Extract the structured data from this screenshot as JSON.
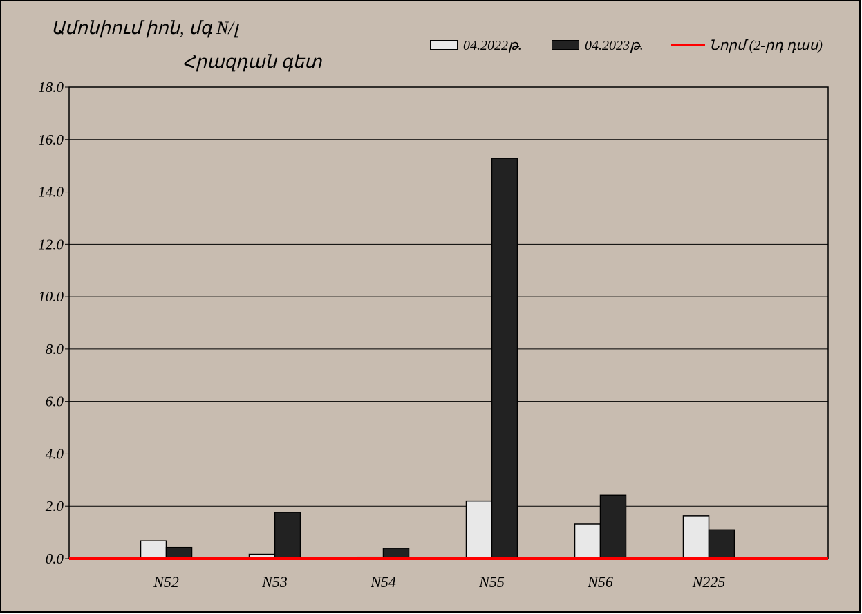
{
  "chart_data": {
    "type": "bar",
    "title": "Ամոնիում իոն, մգ N/լ",
    "subtitle": "Հրազդան գետ",
    "categories": [
      "N52",
      "N53",
      "N54",
      "N55",
      "N56",
      "N225"
    ],
    "series": [
      {
        "name": "04.2022թ.",
        "color": "#e8e8e8",
        "values": [
          0.68,
          0.17,
          0.06,
          2.2,
          1.32,
          1.64
        ]
      },
      {
        "name": "04.2023թ.",
        "color": "#222222",
        "values": [
          0.43,
          1.77,
          0.4,
          15.28,
          2.42,
          1.1
        ]
      }
    ],
    "norm": {
      "name": "Նորմ (2-րդ դաս)",
      "value": 0.0,
      "color": "#ff0000"
    },
    "ylim": [
      0,
      18
    ],
    "yticks": [
      "0.0",
      "2.0",
      "4.0",
      "6.0",
      "8.0",
      "10.0",
      "12.0",
      "14.0",
      "16.0",
      "18.0"
    ],
    "grid": true,
    "legend_position": "top-right"
  }
}
